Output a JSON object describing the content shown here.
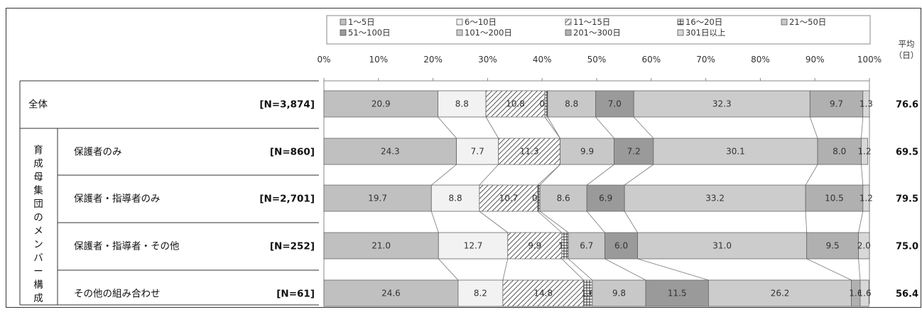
{
  "chart_data": {
    "type": "bar",
    "stacked": true,
    "orientation": "horizontal",
    "normalized_percent": true,
    "x_ticks": [
      "0%",
      "10%",
      "20%",
      "30%",
      "40%",
      "50%",
      "60%",
      "70%",
      "80%",
      "90%",
      "100%"
    ],
    "legend": {
      "row1": [
        "1〜5日",
        "6〜10日",
        "11〜15日",
        "16〜20日",
        "21〜50日"
      ],
      "row2": [
        "51〜100日",
        "101〜200日",
        "201〜300日",
        "301日以上"
      ]
    },
    "series": [
      {
        "name": "1〜5日",
        "color": "#c0c0c0",
        "pattern": "solid"
      },
      {
        "name": "6〜10日",
        "color": "#f2f2f2",
        "pattern": "solid"
      },
      {
        "name": "11〜15日",
        "color": "#ffffff",
        "pattern": "diagonal"
      },
      {
        "name": "16〜20日",
        "color": "#ffffff",
        "pattern": "grid"
      },
      {
        "name": "21〜50日",
        "color": "#c8c8c8",
        "pattern": "solid"
      },
      {
        "name": "51〜100日",
        "color": "#9a9a9a",
        "pattern": "solid"
      },
      {
        "name": "101〜200日",
        "color": "#cccccc",
        "pattern": "solid"
      },
      {
        "name": "201〜300日",
        "color": "#b0b0b0",
        "pattern": "solid"
      },
      {
        "name": "301日以上",
        "color": "#d8d8d8",
        "pattern": "solid"
      }
    ],
    "avg_header": [
      "平均",
      "（日）"
    ],
    "group_label": "育成母集団のメンバー構成",
    "rows": [
      {
        "label": "全体",
        "n": "[N=3,874]",
        "values": [
          20.9,
          8.8,
          10.8,
          0.5,
          8.8,
          7.0,
          32.3,
          9.7,
          1.3
        ],
        "labels": [
          "20.9",
          "8.8",
          "10.8",
          "0.5",
          "8.8",
          "7.0",
          "32.3",
          "9.7",
          "1.3"
        ],
        "avg": "76.6"
      },
      {
        "label": "保護者のみ",
        "n": "[N=860]",
        "values": [
          24.3,
          7.7,
          11.3,
          0.0,
          9.9,
          7.2,
          30.1,
          8.0,
          1.2
        ],
        "labels": [
          "24.3",
          "7.7",
          "11.3",
          "",
          "9.9",
          "7.2",
          "30.1",
          "8.0",
          "1.2"
        ],
        "avg": "69.5"
      },
      {
        "label": "保護者・指導者のみ",
        "n": "[N=2,701]",
        "values": [
          19.7,
          8.8,
          10.7,
          0.4,
          8.6,
          6.9,
          33.2,
          10.5,
          1.2
        ],
        "labels": [
          "19.7",
          "8.8",
          "10.7",
          "0.4",
          "8.6",
          "6.9",
          "33.2",
          "10.5",
          "1.2"
        ],
        "avg": "79.5"
      },
      {
        "label": "保護者・指導者・その他",
        "n": "[N=252]",
        "values": [
          21.0,
          12.7,
          9.9,
          1.2,
          6.7,
          6.0,
          31.0,
          9.5,
          2.0
        ],
        "labels": [
          "21.0",
          "12.7",
          "9.9",
          "1.2",
          "6.7",
          "6.0",
          "31.0",
          "9.5",
          "2.0"
        ],
        "avg": "75.0"
      },
      {
        "label": "その他の組み合わせ",
        "n": "[N=61]",
        "values": [
          24.6,
          8.2,
          14.8,
          1.6,
          9.8,
          11.5,
          26.2,
          1.6,
          1.6
        ],
        "labels": [
          "24.6",
          "8.2",
          "14.8",
          "1.6",
          "9.8",
          "11.5",
          "26.2",
          "1.6",
          "1.6"
        ],
        "avg": "56.4"
      }
    ]
  }
}
